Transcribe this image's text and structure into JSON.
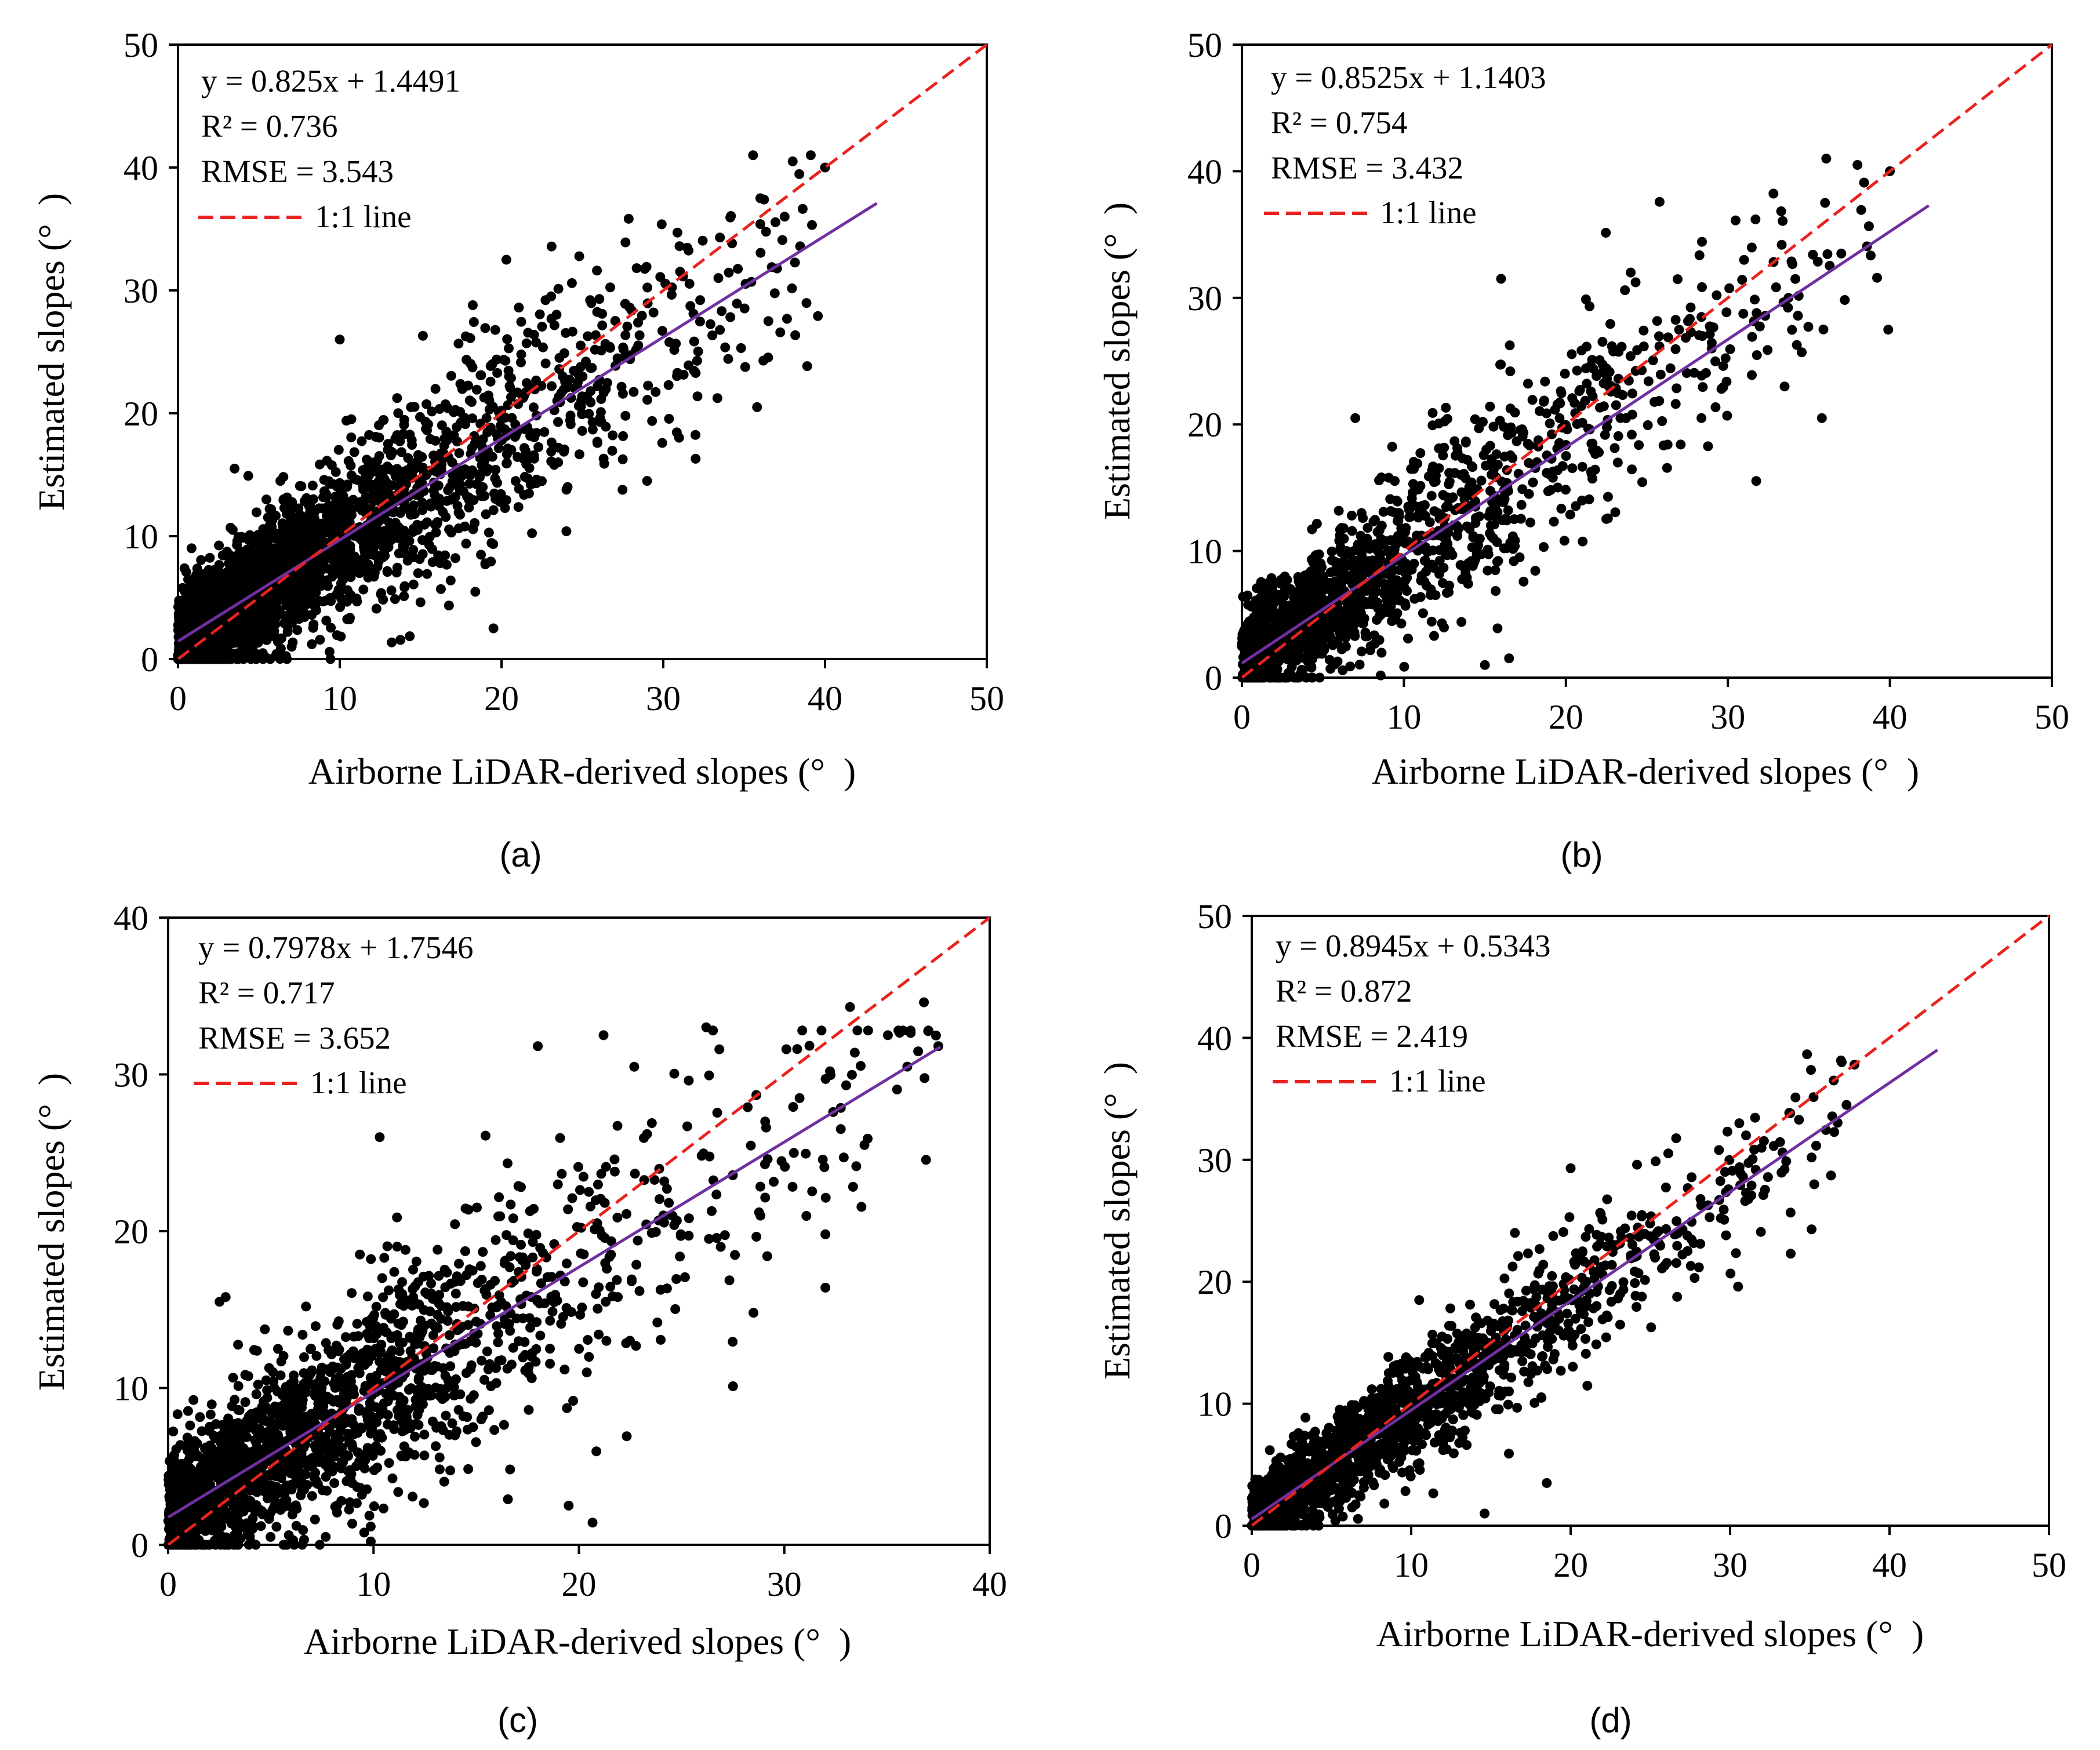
{
  "figure": {
    "panels": [
      {
        "label": "(a)"
      },
      {
        "label": "(b)"
      },
      {
        "label": "(c)"
      },
      {
        "label": "(d)"
      }
    ]
  },
  "chart_data": [
    {
      "type": "scatter",
      "panel": "(a)",
      "xlabel": "Airborne LiDAR-derived slopes (° )",
      "ylabel": "Estimated slopes (° )",
      "xlim": [
        0,
        50
      ],
      "ylim": [
        0,
        50
      ],
      "xticks": [
        0,
        10,
        20,
        30,
        40,
        50
      ],
      "yticks": [
        0,
        10,
        20,
        30,
        40,
        50
      ],
      "annotations": [
        "y = 0.825x + 1.4491",
        "R² = 0.736",
        "RMSE = 3.543"
      ],
      "legend": [
        {
          "name": "1:1 line",
          "color": "#e8231f",
          "style": "dashed"
        }
      ],
      "fit_line": {
        "slope": 0.825,
        "intercept": 1.4491,
        "x_range": [
          0,
          43.2
        ],
        "color": "#7030a0"
      },
      "one_to_one_line": {
        "x_range": [
          0,
          50
        ],
        "color": "#e8231f"
      },
      "point_color": "#000000",
      "scatter": {
        "n": 2600,
        "x_max": 40,
        "noise_sd": 3.543,
        "seed": 11
      },
      "highlight_points": [
        [
          38.0,
          40.5
        ],
        [
          40.0,
          40.0
        ],
        [
          36.0,
          37.5
        ],
        [
          37.5,
          36.0
        ],
        [
          35.8,
          20.5
        ],
        [
          32.0,
          16.3
        ],
        [
          20.3,
          32.5
        ],
        [
          10.0,
          26.0
        ],
        [
          19.5,
          2.5
        ],
        [
          29.0,
          14.5
        ],
        [
          36.5,
          27.5
        ],
        [
          33.5,
          34.3
        ],
        [
          3.5,
          15.5
        ]
      ]
    },
    {
      "type": "scatter",
      "panel": "(b)",
      "xlabel": "Airborne LiDAR-derived slopes (° )",
      "ylabel": "Estimated slopes (° )",
      "xlim": [
        0,
        50
      ],
      "ylim": [
        0,
        50
      ],
      "xticks": [
        0,
        10,
        20,
        30,
        40,
        50
      ],
      "yticks": [
        0,
        10,
        20,
        30,
        40,
        50
      ],
      "annotations": [
        "y = 0.8525x + 1.1403",
        "R² = 0.754",
        "RMSE = 3.432"
      ],
      "legend": [
        {
          "name": "1:1 line",
          "color": "#e8231f",
          "style": "dashed"
        }
      ],
      "fit_line": {
        "slope": 0.8525,
        "intercept": 1.1403,
        "x_range": [
          0,
          42.4
        ],
        "color": "#7030a0"
      },
      "one_to_one_line": {
        "x_range": [
          0,
          50
        ],
        "color": "#e8231f"
      },
      "point_color": "#000000",
      "scatter": {
        "n": 1500,
        "x_max": 40,
        "noise_sd": 3.432,
        "seed": 23
      },
      "highlight_points": [
        [
          38.0,
          40.5
        ],
        [
          40.0,
          40.0
        ],
        [
          36.0,
          37.5
        ],
        [
          37.0,
          33.5
        ],
        [
          35.8,
          20.5
        ],
        [
          16.0,
          31.5
        ],
        [
          29.0,
          26.0
        ],
        [
          33.5,
          23.0
        ],
        [
          15.0,
          1.0
        ],
        [
          7.0,
          20.5
        ],
        [
          24.0,
          32.0
        ],
        [
          31.0,
          33.0
        ],
        [
          35.9,
          27.5
        ]
      ]
    },
    {
      "type": "scatter",
      "panel": "(c)",
      "xlabel": "Airborne LiDAR-derived slopes (° )",
      "ylabel": "Estimated slopes (° )",
      "xlim": [
        0,
        40
      ],
      "ylim": [
        0,
        40
      ],
      "xticks": [
        0,
        10,
        20,
        30,
        40
      ],
      "yticks": [
        0,
        10,
        20,
        30,
        40
      ],
      "annotations": [
        "y = 0.7978x + 1.7546",
        "R² = 0.717",
        "RMSE = 3.652"
      ],
      "legend": [
        {
          "name": "1:1 line",
          "color": "#e8231f",
          "style": "dashed"
        }
      ],
      "fit_line": {
        "slope": 0.7978,
        "intercept": 1.7546,
        "x_range": [
          0,
          37.6
        ],
        "color": "#7030a0"
      },
      "one_to_one_line": {
        "x_range": [
          0,
          40
        ],
        "color": "#e8231f"
      },
      "point_color": "#000000",
      "scatter": {
        "n": 1900,
        "x_max": 37.5,
        "noise_sd": 3.652,
        "seed": 37
      },
      "highlight_points": [
        [
          33.2,
          34.3
        ],
        [
          36.8,
          34.6
        ],
        [
          37.5,
          31.8
        ],
        [
          32.0,
          16.4
        ],
        [
          32.0,
          19.8
        ],
        [
          10.3,
          26.0
        ],
        [
          21.2,
          32.5
        ],
        [
          26.2,
          33.0
        ],
        [
          19.5,
          2.5
        ],
        [
          2.5,
          15.5
        ],
        [
          2.8,
          15.8
        ],
        [
          28.5,
          14.8
        ],
        [
          18.0,
          31.8
        ]
      ]
    },
    {
      "type": "scatter",
      "panel": "(d)",
      "xlabel": "Airborne LiDAR-derived slopes (° )",
      "ylabel": "Estimated slopes (° )",
      "xlim": [
        0,
        50
      ],
      "ylim": [
        0,
        50
      ],
      "xticks": [
        0,
        10,
        20,
        30,
        40,
        50
      ],
      "yticks": [
        0,
        10,
        20,
        30,
        40,
        50
      ],
      "annotations": [
        "y = 0.8945x + 0.5343",
        "R² = 0.872",
        "RMSE = 2.419"
      ],
      "legend": [
        {
          "name": "1:1 line",
          "color": "#e8231f",
          "style": "dashed"
        }
      ],
      "fit_line": {
        "slope": 0.8945,
        "intercept": 0.5343,
        "x_range": [
          0,
          43
        ],
        "color": "#7030a0"
      },
      "one_to_one_line": {
        "x_range": [
          0,
          50
        ],
        "color": "#e8231f"
      },
      "point_color": "#000000",
      "scatter": {
        "n": 1900,
        "x_max": 37.5,
        "noise_sd": 2.419,
        "seed": 53
      },
      "highlight_points": [
        [
          37.0,
          38.0
        ],
        [
          37.8,
          37.8
        ],
        [
          36.5,
          36.5
        ],
        [
          37.3,
          34.5
        ],
        [
          33.8,
          22.3
        ],
        [
          30.5,
          19.6
        ],
        [
          14.6,
          1.0
        ],
        [
          18.5,
          3.5
        ],
        [
          20.0,
          29.3
        ],
        [
          16.5,
          24.0
        ],
        [
          31.0,
          32.0
        ],
        [
          10.5,
          18.5
        ]
      ]
    }
  ]
}
